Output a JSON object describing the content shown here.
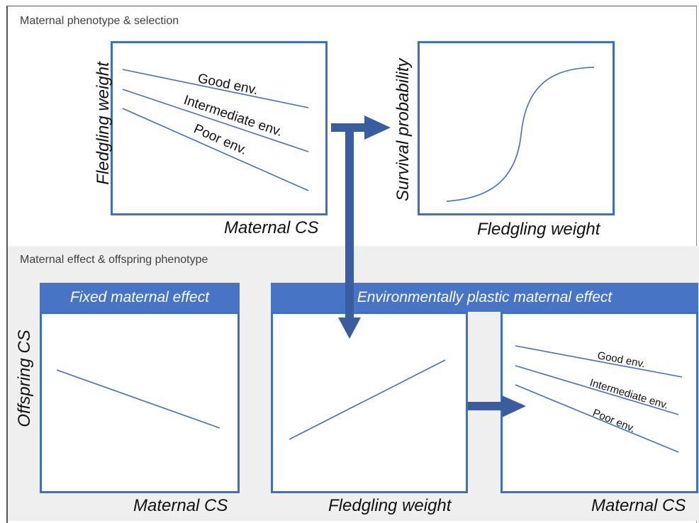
{
  "sections": {
    "top_title": "Maternal phenotype & selection",
    "bottom_title": "Maternal effect & offspring phenotype"
  },
  "panel_a": {
    "ylabel": "Fledgling weight",
    "xlabel": "Maternal CS",
    "lines": [
      "Good env.",
      "Intermediate env.",
      "Poor env."
    ]
  },
  "panel_b": {
    "ylabel": "Survival probability",
    "xlabel": "Fledgling weight"
  },
  "panel_c": {
    "banner": "Fixed maternal effect",
    "ylabel": "Offspring CS",
    "xlabel": "Maternal CS"
  },
  "panel_d": {
    "banner": "Environmentally plastic maternal effect",
    "xlabel": "Fledgling weight"
  },
  "panel_e": {
    "xlabel": "Maternal CS",
    "lines": [
      "Good env.",
      "Intermediate env.",
      "Poor env."
    ]
  },
  "colors": {
    "panel_border": "#3f6fbf",
    "banner_fill": "#4774c4",
    "arrow": "#3a5d9f",
    "plot_line": "#4a6fb0",
    "band": "#efefef"
  }
}
